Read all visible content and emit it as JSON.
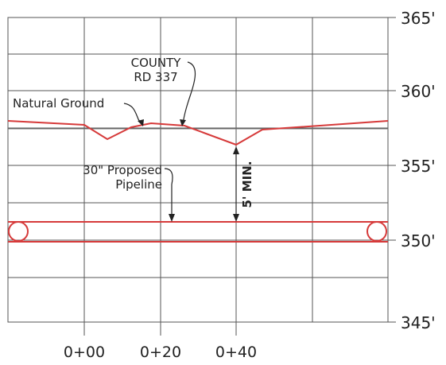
{
  "elevation_labels": [
    "365'",
    "360'",
    "355'",
    "350'",
    "345'"
  ],
  "station_labels": [
    "0+00",
    "0+20",
    "0+40"
  ],
  "annotations": {
    "county_road_line1": "COUNTY",
    "county_road_line2": "RD 337",
    "natural_ground": "Natural Ground",
    "pipeline_line1": "30\" Proposed",
    "pipeline_line2": "Pipeline",
    "min_cover": "5' MIN."
  },
  "colors": {
    "profile": "#d63a3a",
    "grid": "#555555",
    "text": "#222222"
  }
}
